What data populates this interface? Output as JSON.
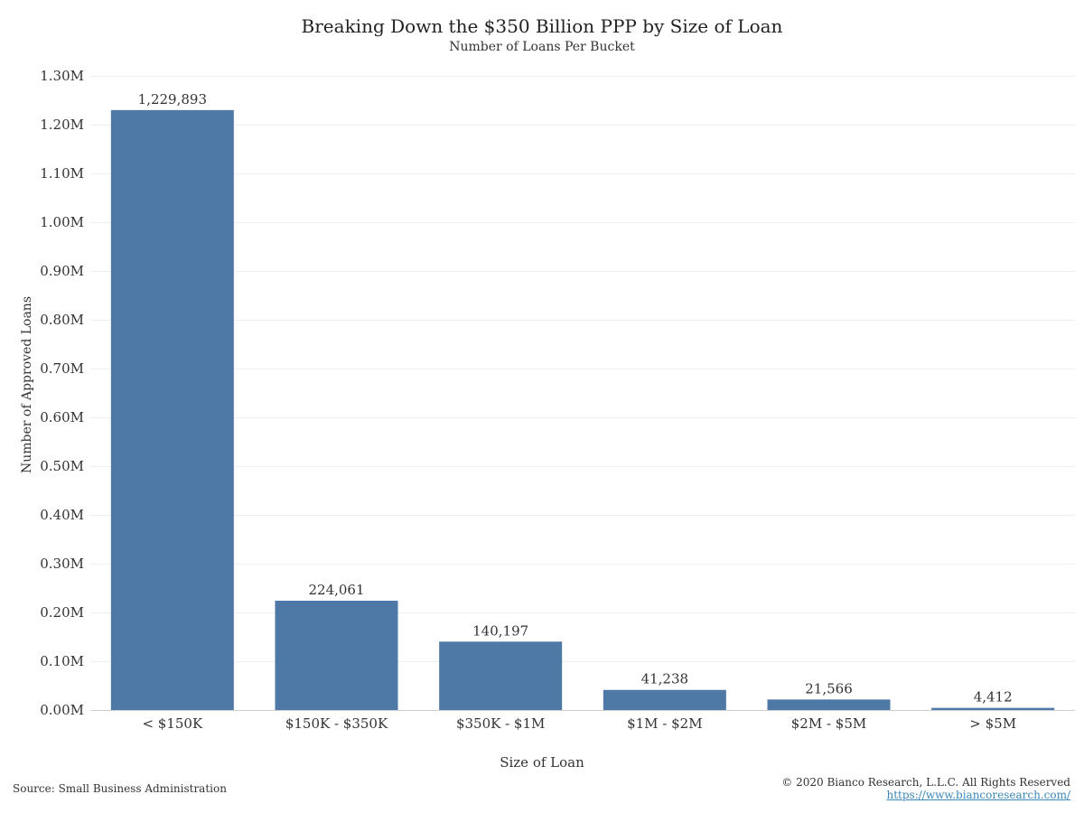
{
  "chart_data": {
    "type": "bar",
    "title": "Breaking Down the $350 Billion PPP by Size of Loan",
    "subtitle": "Number of Loans Per Bucket",
    "xlabel": "Size of Loan",
    "ylabel": "Number of Approved Loans",
    "categories": [
      "< $150K",
      "$150K - $350K",
      "$350K - $1M",
      "$1M - $2M",
      "$2M - $5M",
      "> $5M"
    ],
    "values": [
      1229893,
      224061,
      140197,
      41238,
      21566,
      4412
    ],
    "data_labels": [
      "1,229,893",
      "224,061",
      "140,197",
      "41,238",
      "21,566",
      "4,412"
    ],
    "ylim": [
      0,
      1300000
    ],
    "yticks": [
      0,
      100000,
      200000,
      300000,
      400000,
      500000,
      600000,
      700000,
      800000,
      900000,
      1000000,
      1100000,
      1200000,
      1300000
    ],
    "ytick_labels": [
      "0.00M",
      "0.10M",
      "0.20M",
      "0.30M",
      "0.40M",
      "0.50M",
      "0.60M",
      "0.70M",
      "0.80M",
      "0.90M",
      "1.00M",
      "1.10M",
      "1.20M",
      "1.30M"
    ],
    "grid": true,
    "bar_color": "#4e79a7"
  },
  "footer": {
    "source": "Source: Small Business Administration",
    "copyright": "© 2020 Bianco Research, L.L.C. All Rights Reserved",
    "url": "https://www.biancoresearch.com/"
  }
}
